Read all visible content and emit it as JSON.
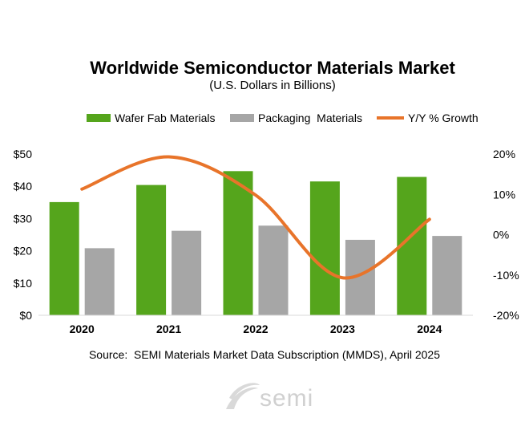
{
  "chart_data": {
    "type": "bar",
    "title": "Worldwide Semiconductor Materials Market",
    "subtitle": "(U.S. Dollars in Billions)",
    "categories": [
      "2020",
      "2021",
      "2022",
      "2023",
      "2024"
    ],
    "series": [
      {
        "name": "Wafer Fab Materials",
        "type": "bar",
        "axis": "left",
        "color": "#55a51c",
        "values": [
          35.1,
          40.4,
          44.7,
          41.5,
          42.9
        ]
      },
      {
        "name": "Packaging  Materials",
        "type": "bar",
        "axis": "left",
        "color": "#a6a6a6",
        "values": [
          20.8,
          26.2,
          27.8,
          23.4,
          24.6
        ]
      },
      {
        "name": "Y/Y % Growth",
        "type": "line",
        "axis": "right",
        "color": "#e8742a",
        "values": [
          11.3,
          19.3,
          9.8,
          -10.7,
          3.8
        ]
      }
    ],
    "left_axis": {
      "ylim": [
        0,
        50
      ],
      "ticks": [
        0,
        10,
        20,
        30,
        40,
        50
      ],
      "tick_labels": [
        "$0",
        "$10",
        "$20",
        "$30",
        "$40",
        "$50"
      ]
    },
    "right_axis": {
      "ylim": [
        -20,
        20
      ],
      "ticks": [
        -20,
        -10,
        0,
        10,
        20
      ],
      "tick_labels": [
        "-20%",
        "-10%",
        "0%",
        "10%",
        "20%"
      ]
    },
    "grid": false,
    "legend_position": "top"
  },
  "source": "Source:  SEMI Materials Market Data Subscription (MMDS), April 2025",
  "logo": {
    "text": "semi",
    "color": "#d0d0d0"
  }
}
